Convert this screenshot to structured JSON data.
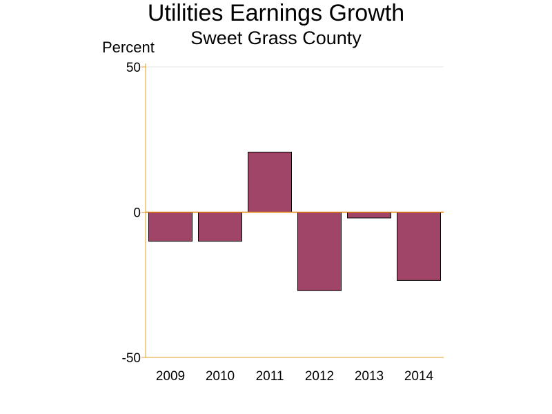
{
  "chart_data": {
    "type": "bar",
    "title": "Utilities Earnings Growth",
    "subtitle": "Sweet Grass County",
    "ylabel": "Percent",
    "xlabel": "",
    "categories": [
      "2009",
      "2010",
      "2011",
      "2012",
      "2013",
      "2014"
    ],
    "values": [
      -10,
      -10,
      20.7,
      -27,
      -2,
      -23.5
    ],
    "ylim": [
      -50,
      50
    ],
    "yticks": [
      -50,
      0,
      50
    ],
    "grid": false,
    "legend": "none",
    "colors": {
      "bar_fill": "#a04468",
      "bar_stroke": "#000000",
      "axis": "#e0a020",
      "zero_line": "#e08000",
      "top_reference": "#e6e6e6"
    }
  }
}
